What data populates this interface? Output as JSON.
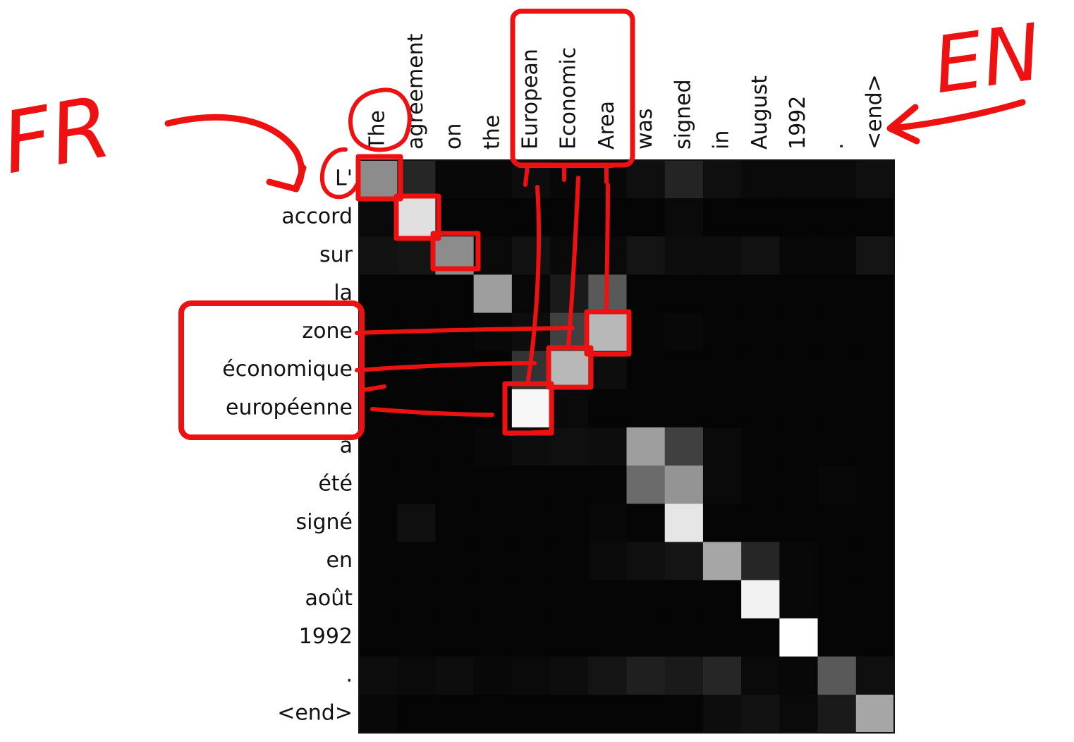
{
  "chart_data": {
    "type": "heatmap",
    "title": "",
    "xlabel": "",
    "ylabel": "",
    "x_tokens": [
      "The",
      "agreement",
      "on",
      "the",
      "European",
      "Economic",
      "Area",
      "was",
      "signed",
      "in",
      "August",
      "1992",
      ".",
      "<end>"
    ],
    "y_tokens": [
      "L'",
      "accord",
      "sur",
      "la",
      "zone",
      "économique",
      "européenne",
      "a",
      "été",
      "signé",
      "en",
      "août",
      "1992",
      ".",
      "<end>"
    ],
    "value_range": [
      0,
      1
    ],
    "colormap": "gray",
    "values": [
      [
        0.55,
        0.15,
        0.03,
        0.03,
        0.05,
        0.03,
        0.03,
        0.06,
        0.14,
        0.06,
        0.04,
        0.04,
        0.04,
        0.06
      ],
      [
        0.04,
        0.88,
        0.02,
        0.02,
        0.02,
        0.02,
        0.02,
        0.02,
        0.04,
        0.02,
        0.02,
        0.02,
        0.02,
        0.02
      ],
      [
        0.07,
        0.08,
        0.55,
        0.04,
        0.07,
        0.04,
        0.04,
        0.08,
        0.05,
        0.05,
        0.07,
        0.03,
        0.03,
        0.08
      ],
      [
        0.02,
        0.02,
        0.02,
        0.62,
        0.03,
        0.1,
        0.35,
        0.02,
        0.02,
        0.02,
        0.02,
        0.02,
        0.02,
        0.02
      ],
      [
        0.02,
        0.02,
        0.02,
        0.03,
        0.05,
        0.25,
        0.72,
        0.02,
        0.03,
        0.02,
        0.02,
        0.02,
        0.02,
        0.02
      ],
      [
        0.02,
        0.02,
        0.02,
        0.02,
        0.2,
        0.72,
        0.05,
        0.02,
        0.02,
        0.02,
        0.02,
        0.02,
        0.02,
        0.02
      ],
      [
        0.02,
        0.02,
        0.02,
        0.02,
        0.97,
        0.04,
        0.02,
        0.02,
        0.02,
        0.02,
        0.02,
        0.02,
        0.02,
        0.02
      ],
      [
        0.02,
        0.02,
        0.02,
        0.03,
        0.05,
        0.06,
        0.05,
        0.62,
        0.25,
        0.04,
        0.02,
        0.02,
        0.02,
        0.02
      ],
      [
        0.02,
        0.02,
        0.02,
        0.02,
        0.02,
        0.02,
        0.02,
        0.42,
        0.58,
        0.04,
        0.02,
        0.02,
        0.03,
        0.02
      ],
      [
        0.02,
        0.06,
        0.02,
        0.02,
        0.02,
        0.02,
        0.03,
        0.02,
        0.9,
        0.02,
        0.02,
        0.02,
        0.02,
        0.02
      ],
      [
        0.02,
        0.02,
        0.02,
        0.02,
        0.02,
        0.02,
        0.04,
        0.06,
        0.08,
        0.65,
        0.15,
        0.03,
        0.02,
        0.02
      ],
      [
        0.02,
        0.02,
        0.02,
        0.02,
        0.02,
        0.02,
        0.02,
        0.02,
        0.02,
        0.02,
        0.95,
        0.03,
        0.02,
        0.02
      ],
      [
        0.02,
        0.02,
        0.02,
        0.02,
        0.02,
        0.02,
        0.02,
        0.02,
        0.02,
        0.02,
        0.02,
        1.0,
        0.02,
        0.02
      ],
      [
        0.05,
        0.04,
        0.05,
        0.03,
        0.04,
        0.05,
        0.08,
        0.12,
        0.1,
        0.15,
        0.04,
        0.03,
        0.35,
        0.06
      ],
      [
        0.03,
        0.02,
        0.02,
        0.02,
        0.02,
        0.02,
        0.02,
        0.02,
        0.02,
        0.05,
        0.07,
        0.04,
        0.1,
        0.65
      ]
    ]
  },
  "annotations": {
    "source_language_label": "FR",
    "target_language_label": "EN",
    "ink_color": "#ee1111"
  }
}
